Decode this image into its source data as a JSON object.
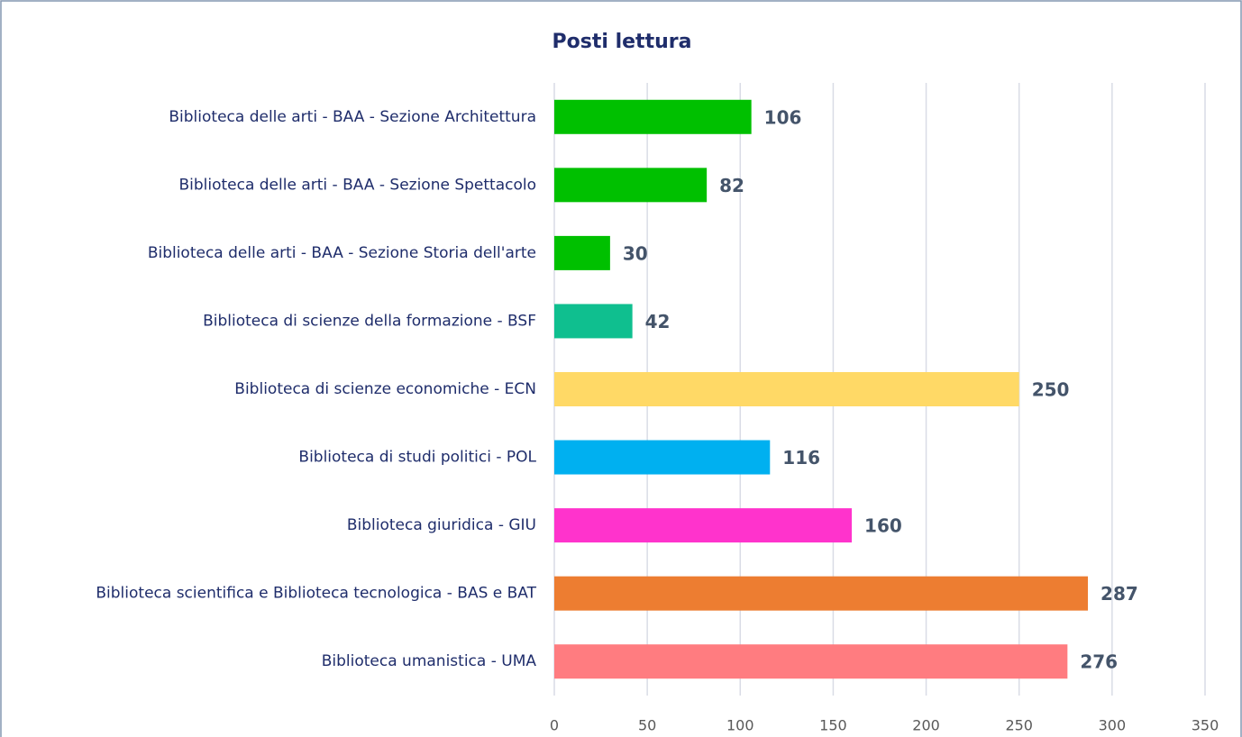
{
  "chart_data": {
    "type": "bar",
    "orientation": "horizontal",
    "title": "Posti lettura",
    "categories": [
      "Biblioteca delle arti - BAA - Sezione Architettura",
      "Biblioteca delle arti - BAA - Sezione Spettacolo",
      "Biblioteca delle arti - BAA - Sezione Storia dell'arte",
      "Biblioteca di scienze della formazione - BSF",
      "Biblioteca di scienze economiche - ECN",
      "Biblioteca di studi politici - POL",
      "Biblioteca giuridica - GIU",
      "Biblioteca scientifica e Biblioteca tecnologica - BAS e BAT",
      "Biblioteca umanistica - UMA"
    ],
    "values": [
      106,
      82,
      30,
      42,
      250,
      116,
      160,
      287,
      276
    ],
    "colors": [
      "#00c000",
      "#00c000",
      "#00c000",
      "#0fbf8f",
      "#ffd966",
      "#00b0f0",
      "#ff33cc",
      "#ed7d31",
      "#ff7c80"
    ],
    "xlim": [
      0,
      350
    ],
    "xticks": [
      0,
      50,
      100,
      150,
      200,
      250,
      300,
      350
    ],
    "grid": true
  }
}
